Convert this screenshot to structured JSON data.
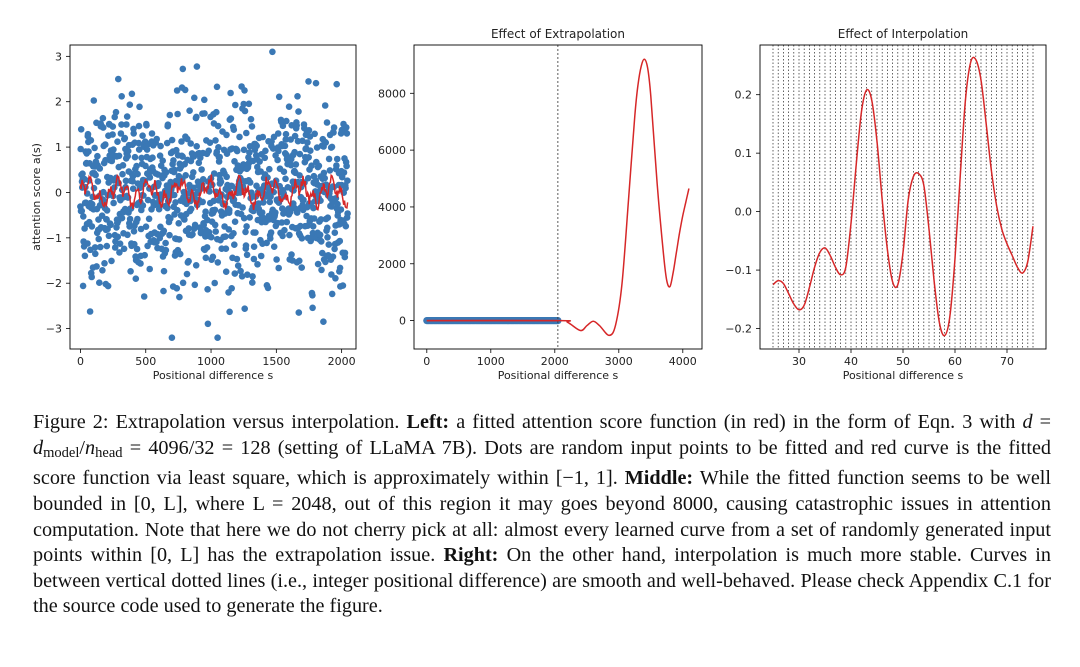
{
  "chart_data": [
    {
      "type": "scatter",
      "title": "",
      "xlabel": "Positional difference s",
      "ylabel": "attention score a(s)",
      "xlim": [
        -80,
        2110
      ],
      "ylim": [
        -3.45,
        3.25
      ],
      "xticks": [
        0,
        500,
        1000,
        1500,
        2000
      ],
      "xtick_labels": [
        "0",
        "500",
        "1000",
        "1500",
        "2000"
      ],
      "yticks": [
        -3,
        -2,
        -1,
        0,
        1,
        2,
        3
      ],
      "ytick_labels": [
        "−3",
        "−2",
        "−1",
        "0",
        "1",
        "2",
        "3"
      ],
      "series": [
        {
          "kind": "scatter",
          "color": "#3a78b5",
          "x_range": [
            0,
            2048
          ],
          "count": 2048,
          "distribution": "standard normal"
        },
        {
          "kind": "line",
          "color": "#d62728",
          "x_range": [
            0,
            2048
          ],
          "approx_range": [
            -0.5,
            0.5
          ]
        }
      ],
      "grid": false
    },
    {
      "type": "line",
      "title": "Effect of Extrapolation",
      "xlabel": "Positional difference s",
      "ylabel": "",
      "xlim": [
        -200,
        4300
      ],
      "ylim": [
        -1000,
        9700
      ],
      "xticks": [
        0,
        1000,
        2000,
        3000,
        4000
      ],
      "xtick_labels": [
        "0",
        "1000",
        "2000",
        "3000",
        "4000"
      ],
      "yticks": [
        0,
        2000,
        4000,
        6000,
        8000
      ],
      "ytick_labels": [
        "0",
        "2000",
        "4000",
        "6000",
        "8000"
      ],
      "vline": 2048,
      "points_band": {
        "x_range": [
          0,
          2048
        ],
        "y": 0,
        "color": "#3a78b5"
      },
      "series": [
        {
          "color": "#d62728",
          "x": [
            0,
            2048,
            2200,
            2400,
            2500,
            2600,
            2700,
            2850,
            2950,
            3050,
            3150,
            3250,
            3300,
            3350,
            3400,
            3450,
            3500,
            3600,
            3700,
            3750,
            3800,
            3850,
            3900,
            3950,
            4000,
            4050,
            4096
          ],
          "y": [
            0,
            0,
            -60,
            -350,
            -180,
            -20,
            -180,
            -520,
            -150,
            1300,
            4200,
            7200,
            8300,
            8950,
            9200,
            8900,
            7900,
            4800,
            2300,
            1400,
            1200,
            1700,
            2400,
            3100,
            3700,
            4200,
            4650
          ]
        }
      ],
      "grid": false
    },
    {
      "type": "line",
      "title": "Effect of Interpolation",
      "xlabel": "Positional difference s",
      "ylabel": "",
      "xlim": [
        22.5,
        77.5
      ],
      "ylim": [
        -0.235,
        0.285
      ],
      "xticks": [
        30,
        40,
        50,
        60,
        70
      ],
      "xtick_labels": [
        "30",
        "40",
        "50",
        "60",
        "70"
      ],
      "yticks": [
        -0.2,
        -0.1,
        0.0,
        0.1,
        0.2
      ],
      "ytick_labels": [
        "−0.2",
        "−0.1",
        "0.0",
        "0.1",
        "0.2"
      ],
      "vlines": {
        "from": 25,
        "to": 75,
        "step": 1
      },
      "series": [
        {
          "color": "#d62728",
          "x": [
            25,
            26,
            27,
            28,
            29,
            30,
            31,
            32,
            33,
            34,
            35,
            36,
            37,
            38,
            39,
            40,
            41,
            42,
            43,
            44,
            45,
            46,
            47,
            48,
            49,
            50,
            51,
            52,
            53,
            54,
            55,
            56,
            57,
            58,
            59,
            60,
            61,
            62,
            63,
            64,
            65,
            66,
            67,
            68,
            69,
            70,
            71,
            72,
            73,
            74,
            75
          ],
          "y": [
            -0.125,
            -0.118,
            -0.123,
            -0.14,
            -0.158,
            -0.168,
            -0.16,
            -0.13,
            -0.095,
            -0.07,
            -0.062,
            -0.075,
            -0.095,
            -0.108,
            -0.095,
            -0.02,
            0.08,
            0.17,
            0.208,
            0.19,
            0.12,
            0.02,
            -0.065,
            -0.12,
            -0.125,
            -0.07,
            0.02,
            0.06,
            0.065,
            0.045,
            -0.03,
            -0.12,
            -0.19,
            -0.212,
            -0.18,
            -0.08,
            0.06,
            0.19,
            0.255,
            0.26,
            0.225,
            0.15,
            0.07,
            0.01,
            -0.03,
            -0.055,
            -0.075,
            -0.095,
            -0.105,
            -0.085,
            -0.025
          ]
        }
      ],
      "grid": false
    }
  ],
  "caption": {
    "label": "Figure 2:",
    "intro": "Extrapolation versus interpolation.",
    "left_head": "Left:",
    "left_text_1": "a fitted attention score function (in red) in the form of Eqn. 3 with",
    "left_text_2": "(setting of LLaMA 7B). Dots are random input points to be fitted and red curve is the fitted score function via least square, which is approximately within [−1, 1].",
    "middle_head": "Middle:",
    "middle_text": "While the fitted function seems to be well bounded in [0, L], where L = 2048, out of this region it may goes beyond 8000, causing catastrophic issues in attention computation. Note that here we do not cherry pick at all: almost every learned curve from a set of randomly generated input points within [0, L] has the extrapolation issue.",
    "right_head": "Right:",
    "right_text": "On the other hand, interpolation is much more stable. Curves in between vertical dotted lines (i.e., integer positional difference) are smooth and well-behaved. Please check Appendix C.1 for the source code used to generate the figure.",
    "eq_d": "d",
    "eq_equals1": " = ",
    "eq_d2": "d",
    "eq_sub_model": "model",
    "eq_slash": "/",
    "eq_n": "n",
    "eq_sub_head": "head",
    "eq_rest": " = 4096/32 = 128"
  }
}
